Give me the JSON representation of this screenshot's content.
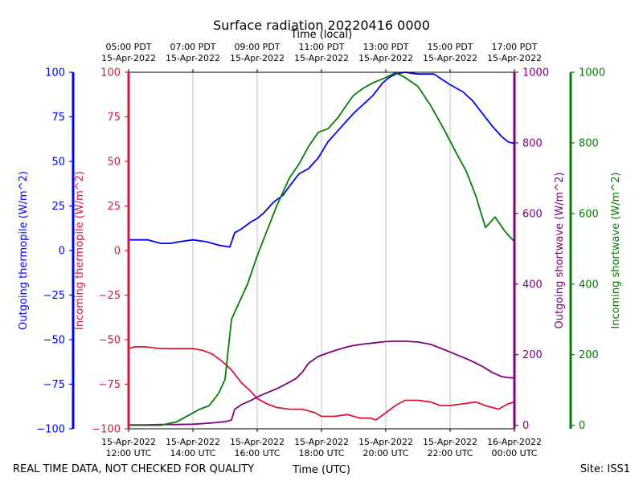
{
  "chart_data": {
    "type": "line",
    "title": "Surface radiation 20220416 0000",
    "xlabel_bottom": "Time (UTC)",
    "xlabel_top": "Time (local)",
    "footer_left": "REAL TIME DATA, NOT CHECKED FOR QUALITY",
    "footer_right": "Site: ISS1",
    "x_range_hours_utc": [
      12,
      24
    ],
    "grid_x_hours": [
      14,
      16,
      18,
      20,
      22
    ],
    "bottom_ticks": [
      {
        "hour": 12,
        "line1": "15-Apr-2022",
        "line2": "12:00 UTC"
      },
      {
        "hour": 14,
        "line1": "15-Apr-2022",
        "line2": "14:00 UTC"
      },
      {
        "hour": 16,
        "line1": "15-Apr-2022",
        "line2": "16:00 UTC"
      },
      {
        "hour": 18,
        "line1": "15-Apr-2022",
        "line2": "18:00 UTC"
      },
      {
        "hour": 20,
        "line1": "15-Apr-2022",
        "line2": "20:00 UTC"
      },
      {
        "hour": 22,
        "line1": "15-Apr-2022",
        "line2": "22:00 UTC"
      },
      {
        "hour": 24,
        "line1": "16-Apr-2022",
        "line2": "00:00 UTC"
      }
    ],
    "top_ticks": [
      {
        "hour": 12,
        "line1": "05:00 PDT",
        "line2": "15-Apr-2022"
      },
      {
        "hour": 14,
        "line1": "07:00 PDT",
        "line2": "15-Apr-2022"
      },
      {
        "hour": 16,
        "line1": "09:00 PDT",
        "line2": "15-Apr-2022"
      },
      {
        "hour": 18,
        "line1": "11:00 PDT",
        "line2": "15-Apr-2022"
      },
      {
        "hour": 20,
        "line1": "13:00 PDT",
        "line2": "15-Apr-2022"
      },
      {
        "hour": 22,
        "line1": "15:00 PDT",
        "line2": "15-Apr-2022"
      },
      {
        "hour": 24,
        "line1": "17:00 PDT",
        "line2": "15-Apr-2022"
      }
    ],
    "axes": {
      "outgoing_thermopile": {
        "label": "Outgoing thermopile (W/m^2)",
        "color": "#0000ff",
        "ylim": [
          -100,
          100
        ],
        "ticks": [
          {
            "v": 100,
            "t": "100"
          },
          {
            "v": 75,
            "t": "75"
          },
          {
            "v": 50,
            "t": "50"
          },
          {
            "v": 25,
            "t": "25"
          },
          {
            "v": 0,
            "t": "0"
          },
          {
            "v": -25,
            "t": "−25"
          },
          {
            "v": -50,
            "t": "−50"
          },
          {
            "v": -75,
            "t": "−75"
          },
          {
            "v": -100,
            "t": "−100"
          }
        ]
      },
      "incoming_thermopile": {
        "label": "Incoming thermopile (W/m^2)",
        "color": "#dc143c",
        "ylim": [
          -100,
          100
        ],
        "ticks": [
          {
            "v": 100,
            "t": "100"
          },
          {
            "v": 75,
            "t": "75"
          },
          {
            "v": 50,
            "t": "50"
          },
          {
            "v": 25,
            "t": "25"
          },
          {
            "v": 0,
            "t": "0"
          },
          {
            "v": -25,
            "t": "−25"
          },
          {
            "v": -50,
            "t": "−50"
          },
          {
            "v": -75,
            "t": "−75"
          },
          {
            "v": -100,
            "t": "−100"
          }
        ]
      },
      "outgoing_shortwave": {
        "label": "Outgoing shortwave (W/m^2)",
        "color": "#800080",
        "ylim": [
          -10,
          1000
        ],
        "ticks": [
          {
            "v": 0,
            "t": "0"
          },
          {
            "v": 200,
            "t": "200"
          },
          {
            "v": 400,
            "t": "400"
          },
          {
            "v": 600,
            "t": "600"
          },
          {
            "v": 800,
            "t": "800"
          },
          {
            "v": 1000,
            "t": "1000"
          }
        ]
      },
      "incoming_shortwave": {
        "label": "Incoming shortwave (W/m^2)",
        "color": "#008000",
        "ylim": [
          -10,
          1000
        ],
        "ticks": [
          {
            "v": 0,
            "t": "0"
          },
          {
            "v": 200,
            "t": "200"
          },
          {
            "v": 400,
            "t": "400"
          },
          {
            "v": 600,
            "t": "600"
          },
          {
            "v": 800,
            "t": "800"
          },
          {
            "v": 1000,
            "t": "1000"
          }
        ]
      }
    },
    "series": [
      {
        "name": "Outgoing thermopile",
        "axis": "outgoing_thermopile",
        "color": "#0000ff",
        "points": [
          [
            12.0,
            6
          ],
          [
            12.3,
            6
          ],
          [
            12.6,
            6
          ],
          [
            13.0,
            4
          ],
          [
            13.3,
            4
          ],
          [
            13.6,
            5
          ],
          [
            14.0,
            6
          ],
          [
            14.4,
            5
          ],
          [
            14.8,
            3
          ],
          [
            15.15,
            2
          ],
          [
            15.3,
            10
          ],
          [
            15.5,
            12
          ],
          [
            15.8,
            16
          ],
          [
            16.0,
            18
          ],
          [
            16.2,
            21
          ],
          [
            16.5,
            27
          ],
          [
            16.8,
            31
          ],
          [
            17.0,
            36
          ],
          [
            17.3,
            43
          ],
          [
            17.6,
            46
          ],
          [
            17.9,
            52
          ],
          [
            18.2,
            61
          ],
          [
            18.5,
            67
          ],
          [
            18.8,
            73
          ],
          [
            19.0,
            77
          ],
          [
            19.3,
            82
          ],
          [
            19.6,
            87
          ],
          [
            19.9,
            94
          ],
          [
            20.1,
            97
          ],
          [
            20.3,
            99
          ],
          [
            20.6,
            100
          ],
          [
            21.0,
            99
          ],
          [
            21.5,
            99
          ],
          [
            22.0,
            93
          ],
          [
            22.4,
            89
          ],
          [
            22.7,
            84
          ],
          [
            23.0,
            77
          ],
          [
            23.3,
            70
          ],
          [
            23.6,
            64
          ],
          [
            23.8,
            61
          ],
          [
            24.0,
            60
          ]
        ]
      },
      {
        "name": "Incoming thermopile",
        "axis": "incoming_thermopile",
        "color": "#dc143c",
        "points": [
          [
            12.0,
            -55
          ],
          [
            12.2,
            -54
          ],
          [
            12.5,
            -54
          ],
          [
            13.0,
            -55
          ],
          [
            13.5,
            -55
          ],
          [
            14.0,
            -55
          ],
          [
            14.3,
            -56
          ],
          [
            14.6,
            -58
          ],
          [
            14.9,
            -62
          ],
          [
            15.2,
            -67
          ],
          [
            15.5,
            -74
          ],
          [
            15.8,
            -79
          ],
          [
            16.0,
            -83
          ],
          [
            16.3,
            -86
          ],
          [
            16.6,
            -88
          ],
          [
            17.0,
            -89
          ],
          [
            17.4,
            -89
          ],
          [
            17.8,
            -91
          ],
          [
            18.0,
            -93
          ],
          [
            18.4,
            -93
          ],
          [
            18.8,
            -92
          ],
          [
            19.2,
            -94
          ],
          [
            19.5,
            -94
          ],
          [
            19.7,
            -95
          ],
          [
            20.0,
            -91
          ],
          [
            20.3,
            -87
          ],
          [
            20.6,
            -84
          ],
          [
            21.0,
            -84
          ],
          [
            21.4,
            -85
          ],
          [
            21.7,
            -87
          ],
          [
            22.0,
            -87
          ],
          [
            22.4,
            -86
          ],
          [
            22.8,
            -85
          ],
          [
            23.1,
            -87
          ],
          [
            23.5,
            -89
          ],
          [
            23.8,
            -86
          ],
          [
            24.0,
            -85
          ]
        ]
      },
      {
        "name": "Outgoing shortwave",
        "axis": "outgoing_shortwave",
        "color": "#800080",
        "points": [
          [
            12.0,
            1
          ],
          [
            12.5,
            1
          ],
          [
            13.0,
            2
          ],
          [
            13.5,
            2
          ],
          [
            14.0,
            3
          ],
          [
            14.5,
            6
          ],
          [
            15.0,
            10
          ],
          [
            15.2,
            15
          ],
          [
            15.3,
            45
          ],
          [
            15.5,
            58
          ],
          [
            15.8,
            70
          ],
          [
            16.0,
            80
          ],
          [
            16.3,
            92
          ],
          [
            16.6,
            103
          ],
          [
            16.9,
            117
          ],
          [
            17.2,
            132
          ],
          [
            17.4,
            150
          ],
          [
            17.6,
            176
          ],
          [
            17.9,
            195
          ],
          [
            18.2,
            205
          ],
          [
            18.5,
            214
          ],
          [
            18.8,
            222
          ],
          [
            19.0,
            226
          ],
          [
            19.3,
            230
          ],
          [
            19.6,
            233
          ],
          [
            20.0,
            237
          ],
          [
            20.3,
            238
          ],
          [
            20.6,
            238
          ],
          [
            21.0,
            236
          ],
          [
            21.4,
            229
          ],
          [
            21.8,
            215
          ],
          [
            22.2,
            200
          ],
          [
            22.6,
            185
          ],
          [
            23.0,
            167
          ],
          [
            23.3,
            150
          ],
          [
            23.6,
            138
          ],
          [
            23.8,
            135
          ],
          [
            24.0,
            134
          ]
        ]
      },
      {
        "name": "Incoming shortwave",
        "axis": "incoming_shortwave",
        "color": "#008000",
        "points": [
          [
            12.0,
            0
          ],
          [
            12.6,
            0
          ],
          [
            13.0,
            0
          ],
          [
            13.5,
            10
          ],
          [
            13.9,
            30
          ],
          [
            14.2,
            45
          ],
          [
            14.5,
            55
          ],
          [
            14.8,
            90
          ],
          [
            15.0,
            130
          ],
          [
            15.2,
            300
          ],
          [
            15.4,
            340
          ],
          [
            15.7,
            400
          ],
          [
            16.0,
            480
          ],
          [
            16.3,
            550
          ],
          [
            16.6,
            620
          ],
          [
            17.0,
            700
          ],
          [
            17.3,
            740
          ],
          [
            17.6,
            790
          ],
          [
            17.9,
            830
          ],
          [
            18.2,
            840
          ],
          [
            18.5,
            870
          ],
          [
            18.8,
            910
          ],
          [
            19.0,
            935
          ],
          [
            19.3,
            955
          ],
          [
            19.6,
            970
          ],
          [
            20.0,
            985
          ],
          [
            20.3,
            999
          ],
          [
            20.6,
            985
          ],
          [
            21.0,
            960
          ],
          [
            21.4,
            905
          ],
          [
            21.8,
            840
          ],
          [
            22.2,
            770
          ],
          [
            22.5,
            720
          ],
          [
            22.8,
            650
          ],
          [
            23.1,
            560
          ],
          [
            23.4,
            590
          ],
          [
            23.7,
            550
          ],
          [
            24.0,
            520
          ]
        ]
      }
    ]
  }
}
